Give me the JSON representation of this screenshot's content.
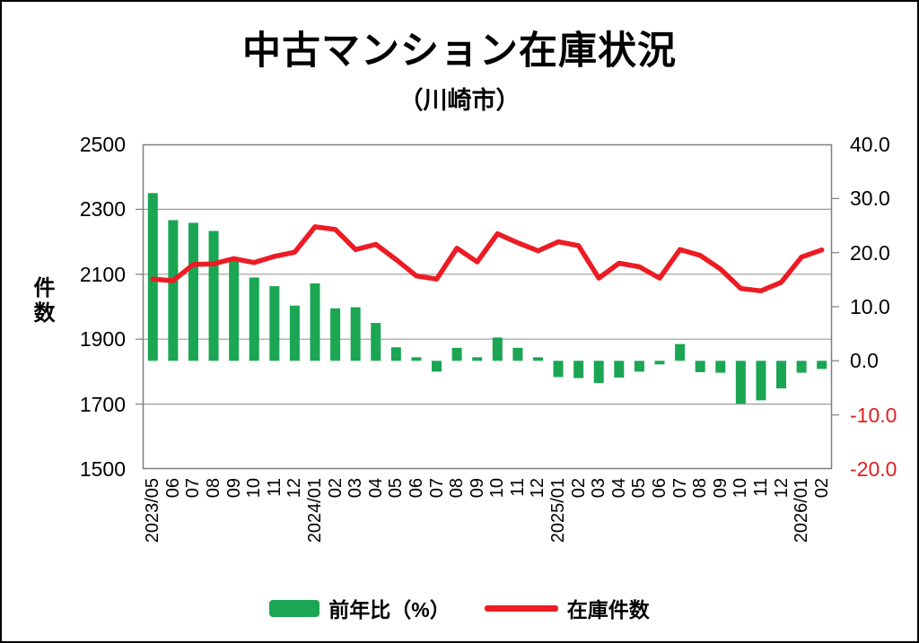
{
  "title": "中古マンション在庫状況",
  "subtitle": "（川崎市）",
  "y_axis_left": {
    "title": "件数",
    "tick_labels": [
      "2500",
      "2300",
      "2100",
      "1900",
      "1700",
      "1500"
    ]
  },
  "y_axis_right": {
    "tick_labels": [
      "40.0",
      "30.0",
      "20.0",
      "10.0",
      "0.0",
      "-10.0",
      "-20.0"
    ]
  },
  "legend": {
    "bar_label": "前年比（%）",
    "line_label": "在庫件数"
  },
  "colors": {
    "bar_green": "#1aa653",
    "line_red": "#ed1c24",
    "negative_label_red": "#e02020",
    "grid_gray": "#9b9b9b",
    "border_gray": "#7f7f7f",
    "text_black": "#000000"
  },
  "chart_data": {
    "type": "bar",
    "combo": "bar+line",
    "title": "中古マンション在庫状況（川崎市）",
    "categories": [
      "2023/05",
      "06",
      "07",
      "08",
      "09",
      "10",
      "11",
      "12",
      "2024/01",
      "02",
      "03",
      "04",
      "05",
      "06",
      "07",
      "08",
      "09",
      "10",
      "11",
      "12",
      "2025/01",
      "02",
      "03",
      "04",
      "05",
      "06",
      "07",
      "08",
      "09",
      "10",
      "11",
      "12",
      "2026/01",
      "02"
    ],
    "series": [
      {
        "name": "前年比（%）",
        "type": "bar",
        "axis": "right",
        "color": "#1aa653",
        "values": [
          31.0,
          26.0,
          25.5,
          24.0,
          18.4,
          15.4,
          13.8,
          10.2,
          14.3,
          9.7,
          9.9,
          7.0,
          2.5,
          0.5,
          -2.0,
          2.4,
          0.4,
          4.3,
          2.4,
          0.4,
          -3.0,
          -3.2,
          -4.1,
          -3.1,
          -2.0,
          -0.3,
          3.1,
          -2.1,
          -2.2,
          -7.9,
          -7.3,
          -5.1,
          -2.2,
          -1.5
        ]
      },
      {
        "name": "在庫件数",
        "type": "line",
        "axis": "left",
        "color": "#ed1c24",
        "values": [
          2085,
          2080,
          2130,
          2132,
          2148,
          2136,
          2155,
          2168,
          2246,
          2238,
          2176,
          2192,
          2145,
          2095,
          2085,
          2180,
          2138,
          2225,
          2197,
          2172,
          2200,
          2188,
          2088,
          2134,
          2123,
          2088,
          2176,
          2158,
          2116,
          2056,
          2049,
          2075,
          2153,
          2175
        ]
      }
    ],
    "xlabel": "",
    "ylabel_left": "件数",
    "ylabel_right": "前年比（%）",
    "left_ylim": [
      1500,
      2500
    ],
    "right_ylim": [
      -20,
      40
    ],
    "left_gridlines": [
      2300,
      2100,
      1900,
      1700
    ],
    "right_minor_ticks": [
      30,
      20,
      10,
      0,
      -10
    ],
    "grid": "horizontal",
    "legend_position": "bottom"
  }
}
